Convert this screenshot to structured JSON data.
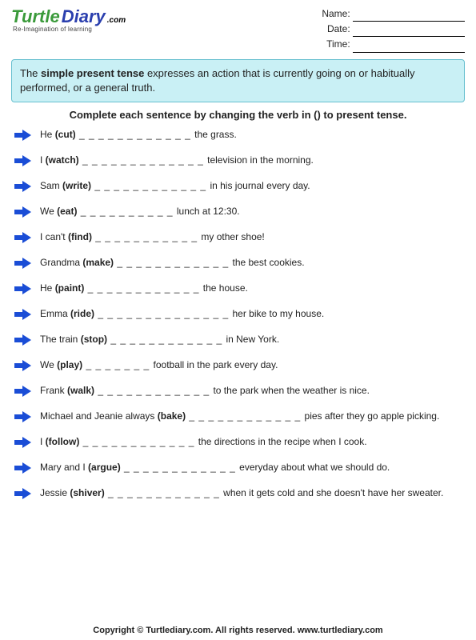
{
  "logo": {
    "word1": "Turtle",
    "word2": "Diary",
    "suffix": ".com",
    "tagline": "Re-Imagination of learning"
  },
  "meta": {
    "name_label": "Name:",
    "date_label": "Date:",
    "time_label": "Time:"
  },
  "info": {
    "prefix": "The ",
    "term": "simple present tense",
    "rest": " expresses an action that is currently going on or habitually performed, or a general truth."
  },
  "instruction": "Complete each sentence by changing the verb in () to present tense.",
  "arrow_color": "#1a4dd6",
  "items": [
    {
      "pre": "He ",
      "verb": "(cut)",
      "blank": " _ _ _ _ _ _ _ _ _ _ _ _ ",
      "post": "the grass."
    },
    {
      "pre": "I ",
      "verb": "(watch)",
      "blank": " _ _ _ _ _ _ _ _ _ _ _ _ _ ",
      "post": "television in the morning."
    },
    {
      "pre": "Sam ",
      "verb": "(write)",
      "blank": " _ _ _ _ _ _ _ _ _ _ _ _ ",
      "post": "in his journal every day."
    },
    {
      "pre": "We ",
      "verb": "(eat)",
      "blank": " _ _ _ _ _ _ _ _ _ _ ",
      "post": " lunch at 12:30."
    },
    {
      "pre": "I can't ",
      "verb": "(find)",
      "blank": " _ _ _ _ _ _ _ _ _ _ _ ",
      "post": "my other shoe!"
    },
    {
      "pre": "Grandma ",
      "verb": "(make)",
      "blank": " _ _ _ _ _ _ _ _ _ _ _ _ ",
      "post": "the best cookies."
    },
    {
      "pre": "He ",
      "verb": "(paint)",
      "blank": " _ _ _ _ _ _ _ _ _ _ _ _ ",
      "post": "the house."
    },
    {
      "pre": "Emma ",
      "verb": "(ride)",
      "blank": " _ _ _ _ _ _ _ _ _ _ _ _ _ _ ",
      "post": "her bike to my house."
    },
    {
      "pre": "The train ",
      "verb": "(stop)",
      "blank": " _ _ _ _ _ _ _ _ _ _ _ _ ",
      "post": "in New York."
    },
    {
      "pre": "We ",
      "verb": "(play)",
      "blank": " _ _ _ _ _ _ _ ",
      "post": "football in the park every day."
    },
    {
      "pre": "Frank ",
      "verb": "(walk)",
      "blank": " _ _ _ _ _ _ _ _ _ _ _ _ ",
      "post": "to the park when the weather is nice."
    },
    {
      "pre": "Michael and Jeanie always ",
      "verb": "(bake)",
      "blank": " _ _ _ _ _ _ _ _ _ _ _ _ ",
      "post": "pies after they go apple picking."
    },
    {
      "pre": "I ",
      "verb": "(follow)",
      "blank": " _ _ _ _ _ _ _ _ _ _ _ _ ",
      "post": "the directions in the recipe when I cook."
    },
    {
      "pre": "Mary and I ",
      "verb": "(argue)",
      "blank": " _ _ _ _ _ _ _ _ _ _ _ _ ",
      "post": "everyday about what we should do."
    },
    {
      "pre": "Jessie ",
      "verb": "(shiver)",
      "blank": " _ _ _ _ _ _ _ _ _ _ _ _ ",
      "post": "when it gets cold and she doesn't have her sweater."
    }
  ],
  "footer": "Copyright © Turtlediary.com. All rights reserved. www.turtlediary.com"
}
